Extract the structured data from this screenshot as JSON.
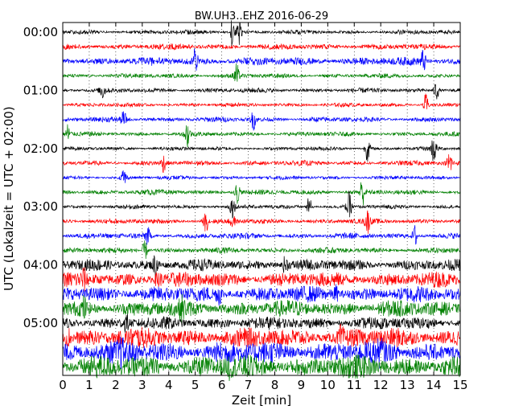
{
  "chart_data": {
    "type": "line",
    "subtype": "dayplot seismogram",
    "title": "BW.UH3..EHZ 2016-06-29",
    "xlabel": "Zeit  [min]",
    "ylabel": "UTC (Lokalzeit = UTC + 02:00)",
    "xlim": [
      0,
      15
    ],
    "xticks": [
      "0",
      "1",
      "2",
      "3",
      "4",
      "5",
      "6",
      "7",
      "8",
      "9",
      "10",
      "11",
      "12",
      "13",
      "14",
      "15"
    ],
    "yticks": [
      "00:00",
      "01:00",
      "02:00",
      "03:00",
      "04:00",
      "05:00"
    ],
    "grid": "vertical dotted at each minute",
    "trace_minutes": 15,
    "trace_count": 24,
    "colors": [
      "#000000",
      "#ff0000",
      "#0000ff",
      "#008000"
    ],
    "traces": [
      {
        "start": "00:00",
        "amp": 0.14
      },
      {
        "start": "00:15",
        "amp": 0.18
      },
      {
        "start": "00:30",
        "amp": 0.26
      },
      {
        "start": "00:45",
        "amp": 0.14
      },
      {
        "start": "01:00",
        "amp": 0.15
      },
      {
        "start": "01:15",
        "amp": 0.12
      },
      {
        "start": "01:30",
        "amp": 0.16
      },
      {
        "start": "01:45",
        "amp": 0.14
      },
      {
        "start": "02:00",
        "amp": 0.12
      },
      {
        "start": "02:15",
        "amp": 0.16
      },
      {
        "start": "02:30",
        "amp": 0.12
      },
      {
        "start": "02:45",
        "amp": 0.16
      },
      {
        "start": "03:00",
        "amp": 0.13
      },
      {
        "start": "03:15",
        "amp": 0.16
      },
      {
        "start": "03:30",
        "amp": 0.18
      },
      {
        "start": "03:45",
        "amp": 0.18
      },
      {
        "start": "04:00",
        "amp": 0.36
      },
      {
        "start": "04:15",
        "amp": 0.48
      },
      {
        "start": "04:30",
        "amp": 0.5
      },
      {
        "start": "04:45",
        "amp": 0.52
      },
      {
        "start": "05:00",
        "amp": 0.4
      },
      {
        "start": "05:15",
        "amp": 0.62
      },
      {
        "start": "05:30",
        "amp": 0.72
      },
      {
        "start": "05:45",
        "amp": 0.72
      }
    ],
    "events": [
      {
        "trace": 0,
        "minute": 6.4,
        "amp": 1.0
      },
      {
        "trace": 0,
        "minute": 6.65,
        "amp": 0.9
      },
      {
        "trace": 2,
        "minute": 5.0,
        "amp": 0.9
      },
      {
        "trace": 2,
        "minute": 13.6,
        "amp": 0.8
      },
      {
        "trace": 3,
        "minute": 6.55,
        "amp": 0.9
      },
      {
        "trace": 4,
        "minute": 1.5,
        "amp": 0.6
      },
      {
        "trace": 4,
        "minute": 14.1,
        "amp": 0.7
      },
      {
        "trace": 5,
        "minute": 13.7,
        "amp": 0.8
      },
      {
        "trace": 6,
        "minute": 2.3,
        "amp": 0.6
      },
      {
        "trace": 6,
        "minute": 7.2,
        "amp": 0.7
      },
      {
        "trace": 7,
        "minute": 0.2,
        "amp": 0.8
      },
      {
        "trace": 7,
        "minute": 4.7,
        "amp": 1.0
      },
      {
        "trace": 8,
        "minute": 11.5,
        "amp": 0.9
      },
      {
        "trace": 8,
        "minute": 14.0,
        "amp": 1.0
      },
      {
        "trace": 9,
        "minute": 3.8,
        "amp": 0.6
      },
      {
        "trace": 9,
        "minute": 14.6,
        "amp": 0.9
      },
      {
        "trace": 10,
        "minute": 2.3,
        "amp": 0.7
      },
      {
        "trace": 11,
        "minute": 6.6,
        "amp": 0.8
      },
      {
        "trace": 11,
        "minute": 11.3,
        "amp": 1.0
      },
      {
        "trace": 12,
        "minute": 6.4,
        "amp": 0.7
      },
      {
        "trace": 12,
        "minute": 9.3,
        "amp": 0.7
      },
      {
        "trace": 12,
        "minute": 10.8,
        "amp": 1.0
      },
      {
        "trace": 13,
        "minute": 5.4,
        "amp": 0.7
      },
      {
        "trace": 13,
        "minute": 6.4,
        "amp": 0.6
      },
      {
        "trace": 13,
        "minute": 11.5,
        "amp": 0.8
      },
      {
        "trace": 14,
        "minute": 3.2,
        "amp": 0.6
      },
      {
        "trace": 14,
        "minute": 13.3,
        "amp": 0.8
      },
      {
        "trace": 15,
        "minute": 3.1,
        "amp": 0.7
      },
      {
        "trace": 16,
        "minute": 3.5,
        "amp": 0.8
      },
      {
        "trace": 16,
        "minute": 8.4,
        "amp": 0.6
      },
      {
        "trace": 17,
        "minute": 0.8,
        "amp": 0.5
      },
      {
        "trace": 17,
        "minute": 3.6,
        "amp": 0.6
      },
      {
        "trace": 18,
        "minute": 5.9,
        "amp": 0.6
      },
      {
        "trace": 18,
        "minute": 10.3,
        "amp": 0.5
      },
      {
        "trace": 19,
        "minute": 0.8,
        "amp": 0.6
      },
      {
        "trace": 19,
        "minute": 4.5,
        "amp": 0.5
      },
      {
        "trace": 20,
        "minute": 2.4,
        "amp": 0.5
      },
      {
        "trace": 21,
        "minute": 0.2,
        "amp": 0.6
      },
      {
        "trace": 21,
        "minute": 10.5,
        "amp": 0.5
      },
      {
        "trace": 22,
        "minute": 2.2,
        "amp": 0.5
      },
      {
        "trace": 22,
        "minute": 12.0,
        "amp": 0.5
      },
      {
        "trace": 23,
        "minute": 6.3,
        "amp": 0.5
      }
    ]
  }
}
